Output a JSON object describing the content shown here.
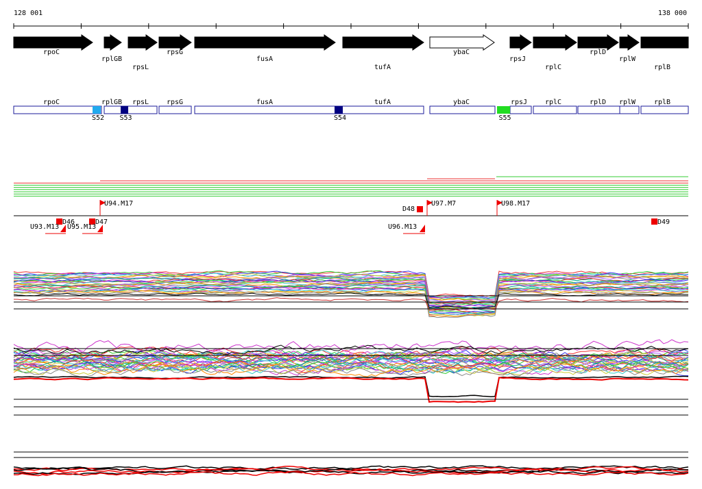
{
  "ruler": {
    "start": "128 001",
    "end": "138 000"
  },
  "genes": [
    "rpoC",
    "rplGB",
    "rpsL",
    "rpsG",
    "fusA",
    "tufA",
    "ybaC",
    "rpsJ",
    "rplC",
    "rplD",
    "rplW",
    "rplB"
  ],
  "boxes": [
    "rpoC",
    "rplGB",
    "rpsL",
    "rpsG",
    "fusA",
    "tufA",
    "ybaC",
    "rpsJ",
    "rplC",
    "rplD",
    "rplW",
    "rplB"
  ],
  "segments": [
    "S52",
    "S53",
    "S54",
    "S55"
  ],
  "flags": [
    "U94.M17",
    "D46",
    "D47",
    "U93.M13",
    "U95.M13",
    "D48",
    "U97.M7",
    "U98.M17",
    "U96.M13",
    "D49"
  ]
}
